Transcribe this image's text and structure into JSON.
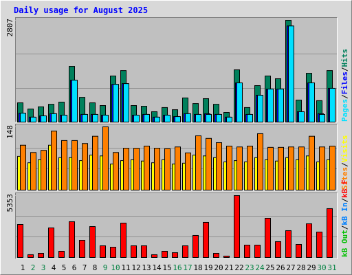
{
  "chart_data": [
    {
      "type": "bar",
      "title": "Daily usage for August 2025",
      "separator": "/",
      "ylim": [
        0,
        2807
      ],
      "yticks": [
        2807
      ],
      "series": [
        {
          "name": "Pages",
          "color": "#00e0ff",
          "values": [
            245,
            135,
            170,
            230,
            190,
            1155,
            210,
            210,
            190,
            1040,
            1060,
            190,
            210,
            135,
            190,
            150,
            230,
            210,
            210,
            210,
            135,
            1080,
            210,
            740,
            910,
            910,
            2650,
            285,
            1080,
            210,
            930
          ]
        },
        {
          "name": "Files",
          "color": "#0000ff",
          "values": [
            245,
            135,
            170,
            230,
            190,
            1155,
            210,
            210,
            190,
            1040,
            1060,
            190,
            210,
            135,
            190,
            150,
            230,
            210,
            230,
            210,
            135,
            1080,
            210,
            740,
            910,
            910,
            2650,
            285,
            1080,
            230,
            930
          ]
        },
        {
          "name": "Hits",
          "color": "#00805c",
          "values": [
            530,
            360,
            420,
            490,
            550,
            1535,
            680,
            530,
            455,
            1270,
            1420,
            455,
            435,
            285,
            400,
            340,
            665,
            510,
            645,
            490,
            265,
            1440,
            400,
            1005,
            1270,
            1195,
            2807,
            605,
            1345,
            590,
            1420
          ]
        }
      ]
    },
    {
      "type": "bar",
      "separator": "/",
      "ylim": [
        0,
        148
      ],
      "yticks": [
        148
      ],
      "series": [
        {
          "name": "Sites",
          "color": "#ff8000",
          "values": [
            105,
            88,
            93,
            138,
            116,
            116,
            109,
            126,
            148,
            88,
            98,
            98,
            103,
            98,
            97,
            101,
            87,
            127,
            121,
            111,
            103,
            101,
            103,
            132,
            100,
            100,
            101,
            101,
            126,
            101,
            103
          ]
        },
        {
          "name": "Visits",
          "color": "#ffff00",
          "values": [
            79,
            64,
            71,
            105,
            76,
            76,
            69,
            82,
            80,
            61,
            69,
            71,
            68,
            64,
            71,
            61,
            63,
            82,
            80,
            76,
            66,
            69,
            66,
            76,
            71,
            68,
            76,
            71,
            80,
            66,
            71
          ]
        }
      ]
    },
    {
      "type": "bar",
      "separator": "/",
      "ylim": [
        0,
        5353
      ],
      "yticks": [
        5353
      ],
      "series": [
        {
          "name": "kB Out",
          "color": "#00c000",
          "values": [
            0,
            0,
            0,
            0,
            0,
            0,
            0,
            0,
            0,
            0,
            0,
            0,
            0,
            0,
            0,
            0,
            0,
            0,
            0,
            0,
            0,
            0,
            0,
            0,
            0,
            0,
            0,
            0,
            0,
            0,
            0
          ]
        },
        {
          "name": "kB In",
          "color": "#0080ff",
          "values": [
            0,
            0,
            0,
            0,
            0,
            0,
            0,
            0,
            0,
            0,
            0,
            0,
            0,
            0,
            0,
            0,
            0,
            0,
            0,
            0,
            0,
            0,
            0,
            0,
            0,
            0,
            0,
            0,
            0,
            0,
            0
          ]
        },
        {
          "name": "kB F",
          "color": "#ff0000",
          "values": [
            2855,
            240,
            355,
            2560,
            535,
            3095,
            1485,
            2675,
            1010,
            890,
            2975,
            1010,
            1010,
            240,
            535,
            415,
            1010,
            1905,
            3035,
            355,
            120,
            5353,
            1070,
            1070,
            3390,
            1370,
            2320,
            1130,
            2915,
            2200,
            4225
          ]
        }
      ],
      "categories": [
        "1",
        "2",
        "3",
        "4",
        "5",
        "6",
        "7",
        "8",
        "9",
        "10",
        "11",
        "12",
        "13",
        "14",
        "15",
        "16",
        "17",
        "18",
        "19",
        "20",
        "21",
        "22",
        "23",
        "24",
        "25",
        "26",
        "27",
        "28",
        "29",
        "30",
        "31"
      ],
      "category_colors": [
        "#000000",
        "#008040",
        "#008040",
        "#000000",
        "#000000",
        "#000000",
        "#000000",
        "#000000",
        "#008040",
        "#008040",
        "#000000",
        "#000000",
        "#000000",
        "#000000",
        "#000000",
        "#008040",
        "#008040",
        "#000000",
        "#000000",
        "#000000",
        "#000000",
        "#000000",
        "#008040",
        "#008040",
        "#000000",
        "#000000",
        "#000000",
        "#000000",
        "#000000",
        "#008040",
        "#008040"
      ]
    }
  ]
}
